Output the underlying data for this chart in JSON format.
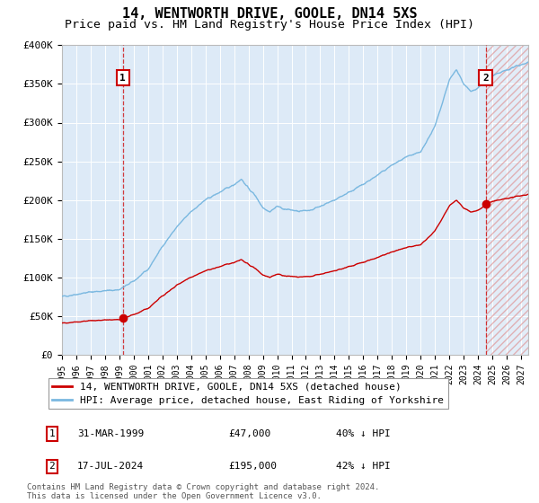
{
  "title": "14, WENTWORTH DRIVE, GOOLE, DN14 5XS",
  "subtitle": "Price paid vs. HM Land Registry's House Price Index (HPI)",
  "title_fontsize": 11,
  "subtitle_fontsize": 9.5,
  "ylim": [
    0,
    400000
  ],
  "yticks": [
    0,
    50000,
    100000,
    150000,
    200000,
    250000,
    300000,
    350000,
    400000
  ],
  "ytick_labels": [
    "£0",
    "£50K",
    "£100K",
    "£150K",
    "£200K",
    "£250K",
    "£300K",
    "£350K",
    "£400K"
  ],
  "xlim_start": 1995.0,
  "xlim_end": 2027.5,
  "sale1_year": 1999.25,
  "sale1_price": 47000,
  "sale2_year": 2024.54,
  "sale2_price": 195000,
  "hpi_color": "#7ab8e0",
  "property_color": "#cc0000",
  "background_color": "#ddeaf7",
  "grid_color": "#ffffff",
  "hatch_color": "#dd8888",
  "legend_label_property": "14, WENTWORTH DRIVE, GOOLE, DN14 5XS (detached house)",
  "legend_label_hpi": "HPI: Average price, detached house, East Riding of Yorkshire",
  "footnote": "Contains HM Land Registry data © Crown copyright and database right 2024.\nThis data is licensed under the Open Government Licence v3.0.",
  "table_entries": [
    {
      "num": 1,
      "date": "31-MAR-1999",
      "price": "£47,000",
      "hpi": "40% ↓ HPI"
    },
    {
      "num": 2,
      "date": "17-JUL-2024",
      "price": "£195,000",
      "hpi": "42% ↓ HPI"
    }
  ]
}
